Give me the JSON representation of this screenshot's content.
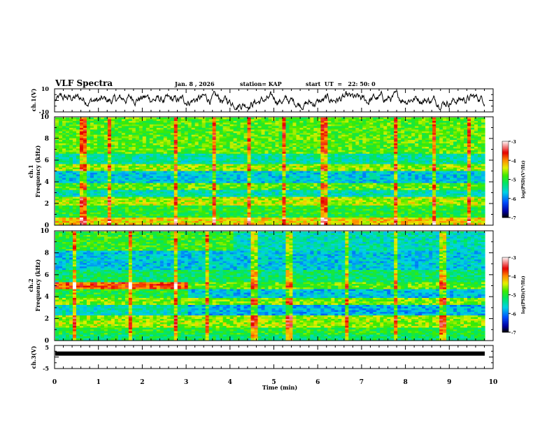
{
  "chart_data": [
    {
      "type": "line",
      "header": {
        "title": "VLF Spectra",
        "date": "Jan. 8 , 2026",
        "station": "station= KAP",
        "start": "start  UT  =   22: 50: 0"
      },
      "ylabel": "ch.1(V)",
      "ylim": [
        -10,
        10
      ],
      "yticks": [
        "10",
        "-10"
      ],
      "xlim": [
        0,
        10
      ],
      "series": [
        {
          "name": "ch.1",
          "description": "noisy waveform around 0 V, mostly between -6 and 6 V"
        }
      ]
    },
    {
      "type": "heatmap",
      "ylabel": "Frequency (kHz)",
      "channel": "ch.1",
      "ylim": [
        0,
        10
      ],
      "yticks": [
        "0",
        "2",
        "4",
        "6",
        "8",
        "10"
      ],
      "xlim": [
        0,
        9.8
      ],
      "colorbar": {
        "label": "log(PSD)(V²/Hz)",
        "range": [
          -7,
          -3
        ],
        "ticks": [
          "-3",
          "-4",
          "-5",
          "-6",
          "-7"
        ]
      }
    },
    {
      "type": "heatmap",
      "ylabel": "Frequency (kHz)",
      "channel": "ch.2",
      "ylim": [
        0,
        10
      ],
      "yticks": [
        "0",
        "2",
        "4",
        "6",
        "8",
        "10"
      ],
      "xlim": [
        0,
        9.8
      ],
      "colorbar": {
        "label": "log(PSD)(V²/Hz)",
        "range": [
          -7,
          -3
        ],
        "ticks": [
          "-3",
          "-4",
          "-5",
          "-6",
          "-7"
        ]
      }
    },
    {
      "type": "line",
      "ylabel": "ch.3(V)",
      "ylim": [
        -5,
        5
      ],
      "yticks": [
        "5",
        "-5"
      ],
      "series": [
        {
          "name": "ch.3",
          "value_approx": 1.5
        }
      ],
      "xlabel": "Time (min)",
      "xticks": [
        "0",
        "1",
        "2",
        "3",
        "4",
        "5",
        "6",
        "7",
        "8",
        "9",
        "10"
      ],
      "xlim": [
        0,
        10
      ]
    }
  ],
  "labels": {
    "ch1": "ch.1",
    "ch2": "ch.2",
    "freq": "Frequency (kHz)",
    "cbar": "log(PSD)(V²/Hz)"
  }
}
